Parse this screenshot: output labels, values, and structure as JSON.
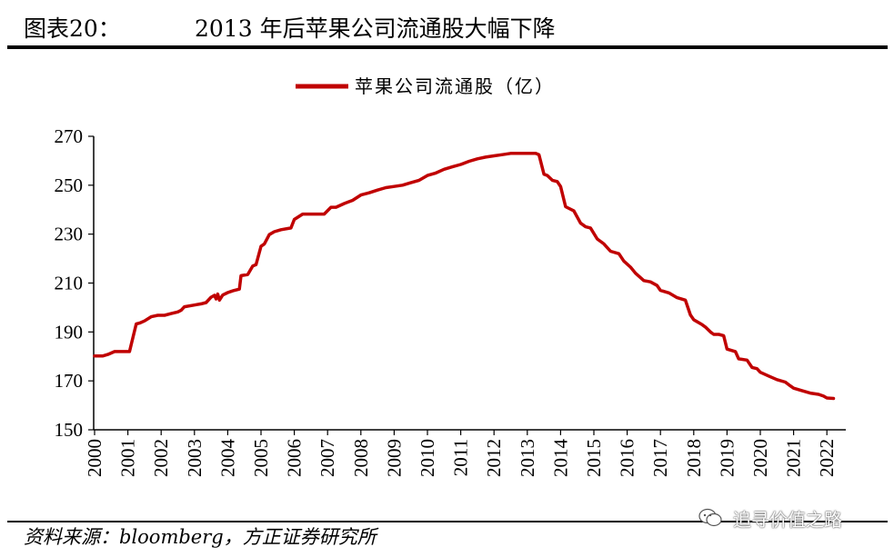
{
  "header": {
    "figure_label": "图表20：",
    "title": "2013 年后苹果公司流通股大幅下降"
  },
  "footer": {
    "source": "资料来源：bloomberg，方正证券研究所",
    "watermark": "追寻价值之路"
  },
  "icons": {
    "watermark_icon": "wechat-icon"
  },
  "colors": {
    "series": "#C00000",
    "axis": "#000000"
  },
  "chart_data": {
    "type": "line",
    "title": "2013 年后苹果公司流通股大幅下降",
    "legend": {
      "position": "top-center"
    },
    "grid": false,
    "xlabel": "",
    "ylabel": "",
    "ylim": [
      150,
      270
    ],
    "yticks": [
      150,
      170,
      190,
      210,
      230,
      250,
      270
    ],
    "xlim": [
      2000,
      2022.3
    ],
    "xticks": [
      "2000",
      "2001",
      "2002",
      "2003",
      "2004",
      "2005",
      "2006",
      "2007",
      "2008",
      "2009",
      "2010",
      "2011",
      "2012",
      "2013",
      "2014",
      "2015",
      "2016",
      "2017",
      "2018",
      "2019",
      "2020",
      "2021",
      "2022"
    ],
    "series": [
      {
        "name": "苹果公司流通股（亿）",
        "x": [
          2000.0,
          2000.25,
          2000.4,
          2000.6,
          2000.9,
          2000.95,
          2001.0,
          2001.05,
          2001.25,
          2001.35,
          2001.5,
          2001.7,
          2001.9,
          2002.1,
          2002.3,
          2002.5,
          2002.6,
          2002.7,
          2003.0,
          2003.2,
          2003.35,
          2003.5,
          2003.6,
          2003.65,
          2003.7,
          2003.75,
          2003.85,
          2004.0,
          2004.15,
          2004.35,
          2004.4,
          2004.6,
          2004.75,
          2004.85,
          2005.0,
          2005.1,
          2005.25,
          2005.4,
          2005.6,
          2005.9,
          2006.0,
          2006.25,
          2006.5,
          2006.7,
          2006.9,
          2007.1,
          2007.25,
          2007.5,
          2007.75,
          2008.0,
          2008.25,
          2008.5,
          2008.75,
          2009.0,
          2009.25,
          2009.5,
          2009.75,
          2010.0,
          2010.25,
          2010.5,
          2010.75,
          2011.0,
          2011.25,
          2011.5,
          2011.75,
          2012.0,
          2012.25,
          2012.5,
          2012.75,
          2013.0,
          2013.25,
          2013.35,
          2013.5,
          2013.6,
          2013.75,
          2013.9,
          2014.0,
          2014.15,
          2014.4,
          2014.6,
          2014.75,
          2014.9,
          2015.1,
          2015.3,
          2015.5,
          2015.75,
          2015.9,
          2016.1,
          2016.25,
          2016.5,
          2016.7,
          2016.9,
          2017.0,
          2017.25,
          2017.5,
          2017.75,
          2017.9,
          2018.0,
          2018.25,
          2018.35,
          2018.5,
          2018.6,
          2018.75,
          2018.9,
          2019.0,
          2019.25,
          2019.35,
          2019.6,
          2019.75,
          2019.9,
          2020.0,
          2020.25,
          2020.5,
          2020.75,
          2020.9,
          2021.0,
          2021.25,
          2021.5,
          2021.75,
          2021.9,
          2022.0,
          2022.2
        ],
        "values": [
          180.2,
          180.2,
          180.8,
          182.0,
          182.0,
          182.0,
          182.0,
          182.0,
          193.3,
          193.6,
          194.5,
          196.2,
          196.8,
          196.8,
          197.5,
          198.2,
          198.9,
          200.3,
          201.0,
          201.5,
          202.0,
          204.2,
          205.0,
          203.5,
          205.5,
          203.0,
          205.1,
          206.1,
          206.8,
          207.5,
          213.0,
          213.5,
          217.0,
          217.5,
          225.0,
          226.0,
          229.8,
          231.0,
          231.8,
          232.5,
          236.0,
          238.2,
          238.2,
          238.2,
          238.2,
          241.0,
          241.0,
          242.5,
          243.8,
          246.0,
          246.9,
          248.0,
          249.0,
          249.5,
          250.0,
          251.0,
          252.0,
          254.0,
          255.0,
          256.5,
          257.5,
          258.5,
          259.8,
          260.8,
          261.5,
          262.0,
          262.5,
          263.0,
          263.0,
          263.0,
          263.0,
          262.5,
          254.5,
          254.0,
          252.0,
          251.5,
          249.5,
          241.2,
          239.5,
          234.5,
          233.0,
          232.5,
          228.0,
          226.0,
          223.0,
          222.0,
          219.0,
          216.5,
          214.0,
          211.0,
          210.5,
          209.0,
          207.0,
          206.0,
          204.0,
          203.0,
          197.0,
          195.0,
          193.0,
          192.0,
          190.0,
          189.0,
          189.0,
          188.5,
          183.0,
          182.0,
          179.0,
          178.5,
          175.5,
          175.0,
          173.5,
          172.0,
          170.5,
          169.5,
          168.0,
          167.0,
          166.0,
          165.0,
          164.5,
          163.8,
          163.0,
          162.8
        ]
      }
    ]
  }
}
